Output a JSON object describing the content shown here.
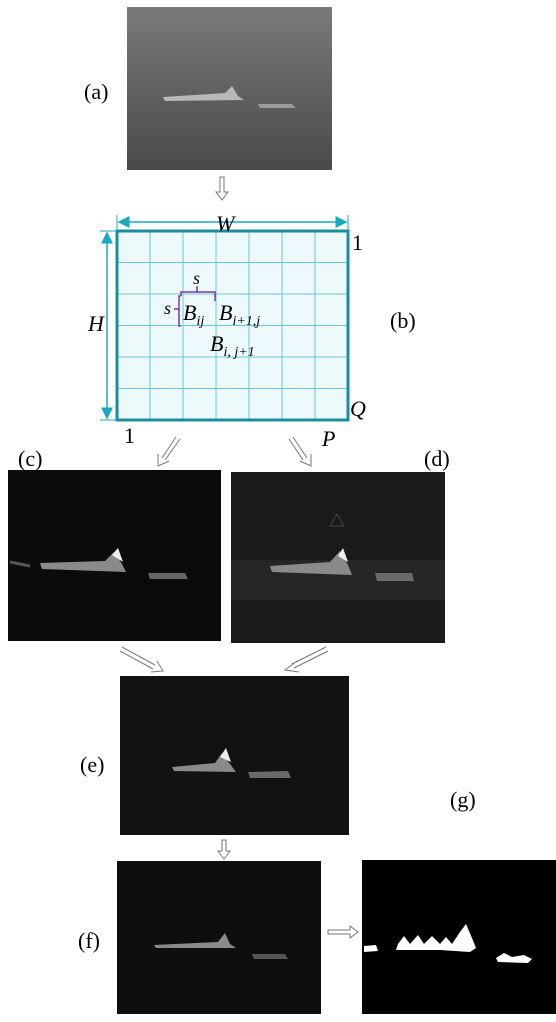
{
  "panels": {
    "a": "(a)",
    "b": "(b)",
    "c": "(c)",
    "d": "(d)",
    "e": "(e)",
    "f": "(f)",
    "g": "(g)"
  },
  "grid": {
    "width_label": "W",
    "height_label": "H",
    "corner_top_right": "1",
    "corner_bottom_left": "1",
    "q_label": "Q",
    "p_label": "P",
    "s_top": "s",
    "s_left": "s",
    "blocks": [
      {
        "base": "B",
        "sub": "ij"
      },
      {
        "base": "B",
        "sub": "i+1,j"
      },
      {
        "base": "B",
        "sub": "i, j+1"
      }
    ]
  }
}
